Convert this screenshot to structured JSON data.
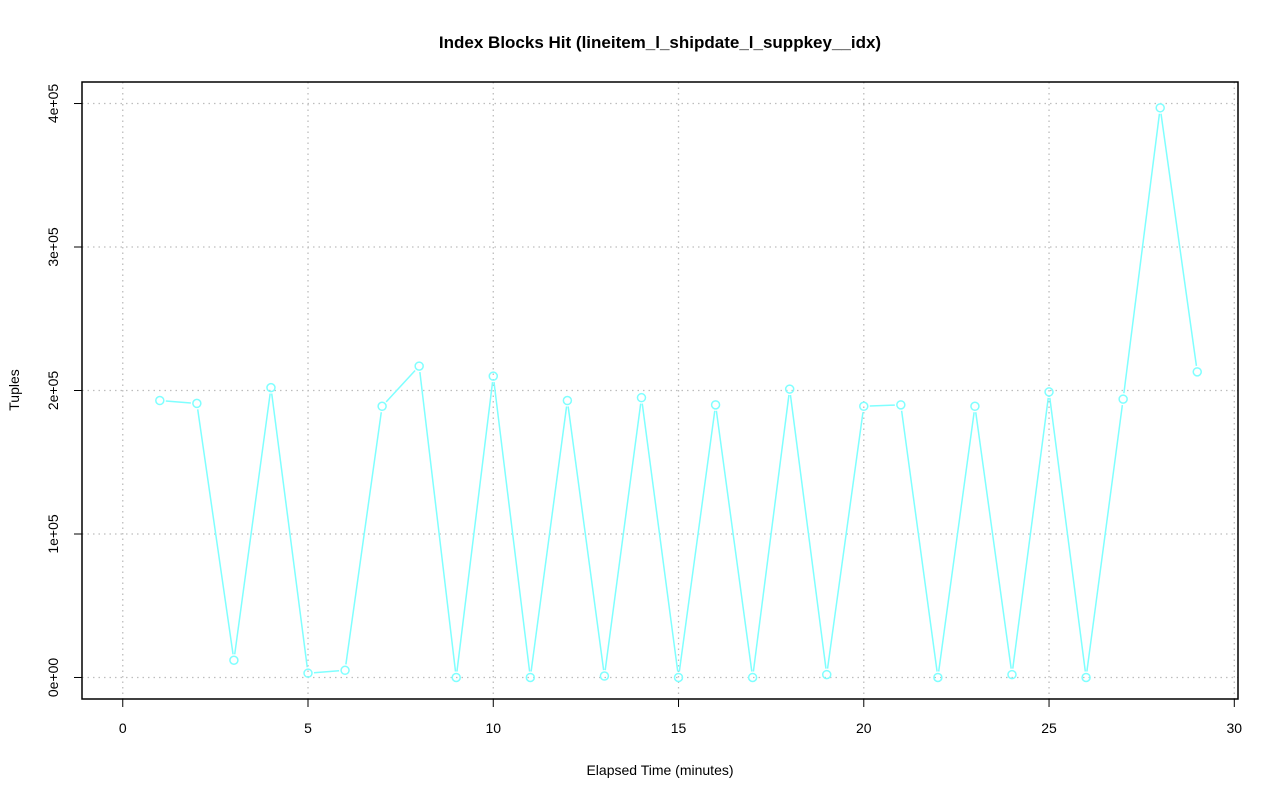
{
  "chart_data": {
    "type": "line",
    "title": "Index Blocks Hit (lineitem_l_shipdate_l_suppkey__idx)",
    "xlabel": "Elapsed Time (minutes)",
    "ylabel": "Tuples",
    "xlim": [
      -1.1,
      30.1
    ],
    "ylim": [
      -15000,
      415000
    ],
    "x_ticks": [
      0,
      5,
      10,
      15,
      20,
      25,
      30
    ],
    "x_tick_labels": [
      "0",
      "5",
      "10",
      "15",
      "20",
      "25",
      "30"
    ],
    "y_ticks": [
      0,
      100000,
      200000,
      300000,
      400000
    ],
    "y_tick_labels": [
      "0e+00",
      "1e+05",
      "2e+05",
      "3e+05",
      "4e+05"
    ],
    "grid": true,
    "series": [
      {
        "color": "#7fffff",
        "x": [
          1,
          2,
          3,
          4,
          5,
          6,
          7,
          8,
          9,
          10,
          11,
          12,
          13,
          14,
          15,
          16,
          17,
          18,
          19,
          20,
          21,
          22,
          23,
          24,
          25,
          26,
          27,
          28,
          29
        ],
        "y": [
          193000,
          191000,
          12000,
          202000,
          3000,
          5000,
          189000,
          217000,
          0,
          210000,
          0,
          193000,
          1000,
          195000,
          0,
          190000,
          0,
          201000,
          2000,
          189000,
          190000,
          0,
          189000,
          2000,
          199000,
          0,
          194000,
          397000,
          213000
        ]
      }
    ]
  }
}
